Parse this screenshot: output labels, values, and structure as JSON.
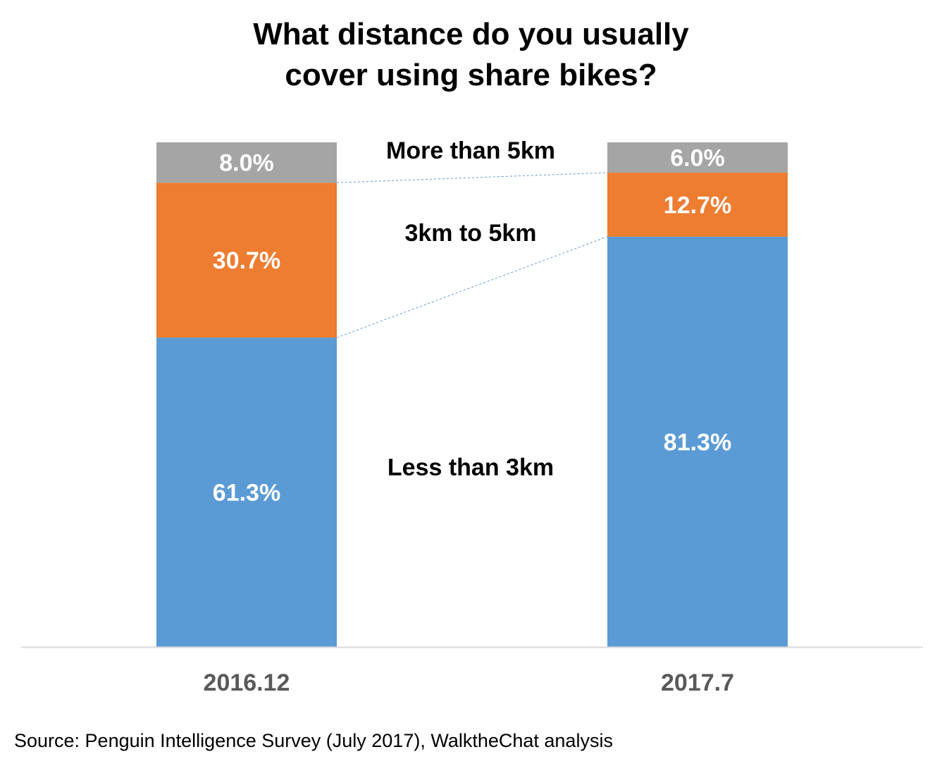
{
  "chart_data": {
    "type": "bar",
    "stacked": true,
    "title_lines": [
      "What distance do you usually",
      "cover using share bikes?"
    ],
    "categories": [
      "2016.12",
      "2017.7"
    ],
    "series": [
      {
        "name": "Less than 3km",
        "values": [
          61.3,
          81.3
        ],
        "labels": [
          "61.3%",
          "81.3%"
        ],
        "color": "#5B9BD5"
      },
      {
        "name": "3km to 5km",
        "values": [
          30.7,
          12.7
        ],
        "labels": [
          "30.7%",
          "12.7%"
        ],
        "color": "#ED7D31"
      },
      {
        "name": "More than 5km",
        "values": [
          8.0,
          6.0
        ],
        "labels": [
          "8.0%",
          "6.0%"
        ],
        "color": "#A5A5A5"
      }
    ],
    "ylim": [
      0,
      100
    ],
    "xlabel": "",
    "ylabel": "",
    "grid": false,
    "connector_lines": true,
    "connector_color": "#5B9BD5"
  },
  "source": "Source: Penguin Intelligence Survey (July 2017), WalktheChat analysis"
}
